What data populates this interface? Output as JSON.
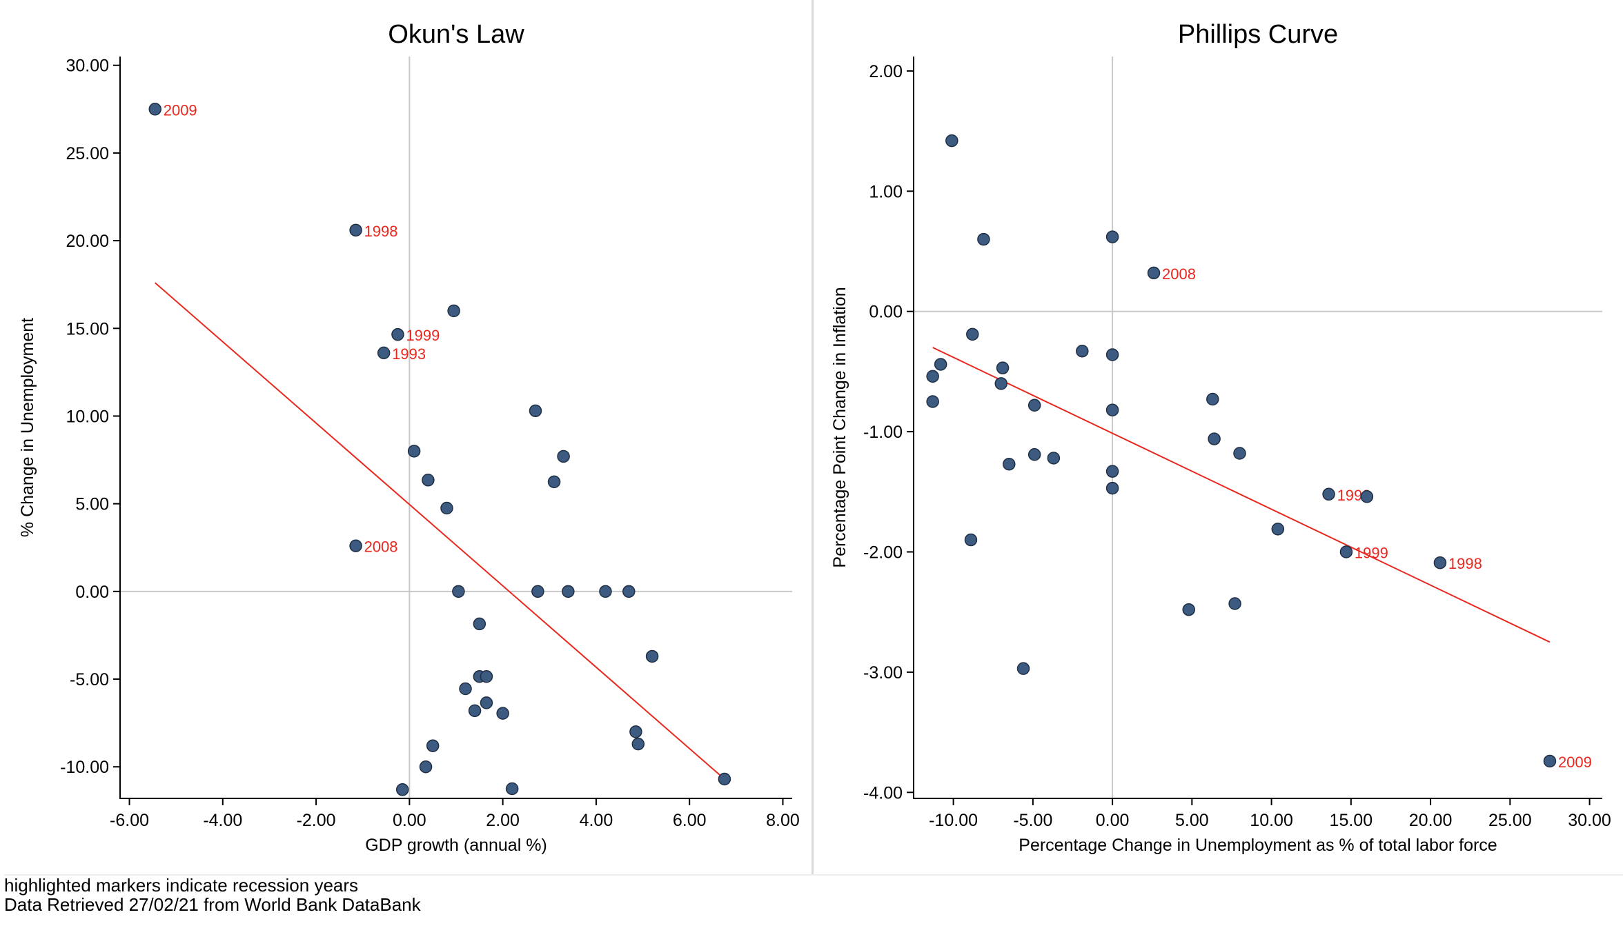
{
  "colors": {
    "marker_fill": "#3d5a80",
    "marker_stroke": "#1f2f44",
    "fit_line": "#e8281e",
    "highlight_label": "#e8281e",
    "zero_line": "#c8c8c8",
    "axis": "#000000"
  },
  "footer": {
    "note": "highlighted markers indicate recession years",
    "source": "Data Retrieved 27/02/21 from World Bank DataBank"
  },
  "chart_data": [
    {
      "type": "scatter",
      "title": "Okun's Law",
      "xlabel": "GDP growth (annual %)",
      "ylabel": "% Change in Unemployment",
      "xlim": [
        -6.2,
        8.2
      ],
      "ylim": [
        -11.8,
        30.5
      ],
      "xticks": [
        -6,
        -4,
        -2,
        0,
        2,
        4,
        6,
        8
      ],
      "yticks": [
        -10,
        -5,
        0,
        5,
        10,
        15,
        20,
        25,
        30
      ],
      "zero_lines": true,
      "points": [
        {
          "x": -5.45,
          "y": 27.5,
          "label": "2009"
        },
        {
          "x": -1.15,
          "y": 20.6,
          "label": "1998"
        },
        {
          "x": -0.25,
          "y": 14.65,
          "label": "1999"
        },
        {
          "x": -0.55,
          "y": 13.6,
          "label": "1993"
        },
        {
          "x": -1.15,
          "y": 2.6,
          "label": "2008"
        },
        {
          "x": 0.95,
          "y": 16.0
        },
        {
          "x": 2.7,
          "y": 10.3
        },
        {
          "x": 0.1,
          "y": 8.0
        },
        {
          "x": 3.3,
          "y": 7.7
        },
        {
          "x": 0.4,
          "y": 6.35
        },
        {
          "x": 3.1,
          "y": 6.25
        },
        {
          "x": 0.8,
          "y": 4.75
        },
        {
          "x": 1.05,
          "y": 0.0
        },
        {
          "x": 2.75,
          "y": 0.0
        },
        {
          "x": 3.4,
          "y": 0.0
        },
        {
          "x": 4.2,
          "y": 0.0
        },
        {
          "x": 4.7,
          "y": 0.0
        },
        {
          "x": 1.5,
          "y": -1.85
        },
        {
          "x": 5.2,
          "y": -3.7
        },
        {
          "x": 1.5,
          "y": -4.85
        },
        {
          "x": 1.65,
          "y": -4.85
        },
        {
          "x": 1.2,
          "y": -5.55
        },
        {
          "x": 1.65,
          "y": -6.35
        },
        {
          "x": 1.4,
          "y": -6.8
        },
        {
          "x": 2.0,
          "y": -6.95
        },
        {
          "x": 4.85,
          "y": -8.0
        },
        {
          "x": 4.9,
          "y": -8.7
        },
        {
          "x": 0.5,
          "y": -8.8
        },
        {
          "x": 0.35,
          "y": -10.0
        },
        {
          "x": -0.15,
          "y": -11.3
        },
        {
          "x": 2.2,
          "y": -11.25
        },
        {
          "x": 6.75,
          "y": -10.7
        }
      ],
      "fit_line": {
        "x": [
          -5.45,
          6.75
        ],
        "y": [
          17.6,
          -10.7
        ]
      }
    },
    {
      "type": "scatter",
      "title": "Phillips Curve",
      "xlabel": "Percentage Change in Unemployment as % of total labor force",
      "ylabel": "Percentage Point Change in Inflation",
      "xlim": [
        -12.5,
        30.8
      ],
      "ylim": [
        -4.05,
        2.12
      ],
      "xticks": [
        -10,
        -5,
        0,
        5,
        10,
        15,
        20,
        25,
        30
      ],
      "yticks": [
        -4,
        -3,
        -2,
        -1,
        0,
        1,
        2
      ],
      "zero_lines": true,
      "points": [
        {
          "x": 2.6,
          "y": 0.32,
          "label": "2008"
        },
        {
          "x": 13.6,
          "y": -1.52,
          "label": "1993"
        },
        {
          "x": 14.7,
          "y": -2.0,
          "label": "1999"
        },
        {
          "x": 20.6,
          "y": -2.09,
          "label": "1998"
        },
        {
          "x": 27.5,
          "y": -3.74,
          "label": "2009"
        },
        {
          "x": -10.1,
          "y": 1.42
        },
        {
          "x": -8.1,
          "y": 0.6
        },
        {
          "x": 0.0,
          "y": 0.62
        },
        {
          "x": -8.8,
          "y": -0.19
        },
        {
          "x": -1.9,
          "y": -0.33
        },
        {
          "x": 0.0,
          "y": -0.36
        },
        {
          "x": -10.8,
          "y": -0.44
        },
        {
          "x": -6.9,
          "y": -0.47
        },
        {
          "x": -11.3,
          "y": -0.54
        },
        {
          "x": -7.0,
          "y": -0.6
        },
        {
          "x": -11.3,
          "y": -0.75
        },
        {
          "x": 6.3,
          "y": -0.73
        },
        {
          "x": -4.9,
          "y": -0.78
        },
        {
          "x": 0.0,
          "y": -0.82
        },
        {
          "x": 6.4,
          "y": -1.06
        },
        {
          "x": 8.0,
          "y": -1.18
        },
        {
          "x": -4.9,
          "y": -1.19
        },
        {
          "x": -3.7,
          "y": -1.22
        },
        {
          "x": -6.5,
          "y": -1.27
        },
        {
          "x": 0.0,
          "y": -1.33
        },
        {
          "x": 0.0,
          "y": -1.47
        },
        {
          "x": 16.0,
          "y": -1.54
        },
        {
          "x": 10.4,
          "y": -1.81
        },
        {
          "x": -8.9,
          "y": -1.9
        },
        {
          "x": 7.7,
          "y": -2.43
        },
        {
          "x": 4.8,
          "y": -2.48
        },
        {
          "x": -5.6,
          "y": -2.97
        }
      ],
      "fit_line": {
        "x": [
          -11.3,
          27.5
        ],
        "y": [
          -0.3,
          -2.75
        ]
      }
    }
  ]
}
